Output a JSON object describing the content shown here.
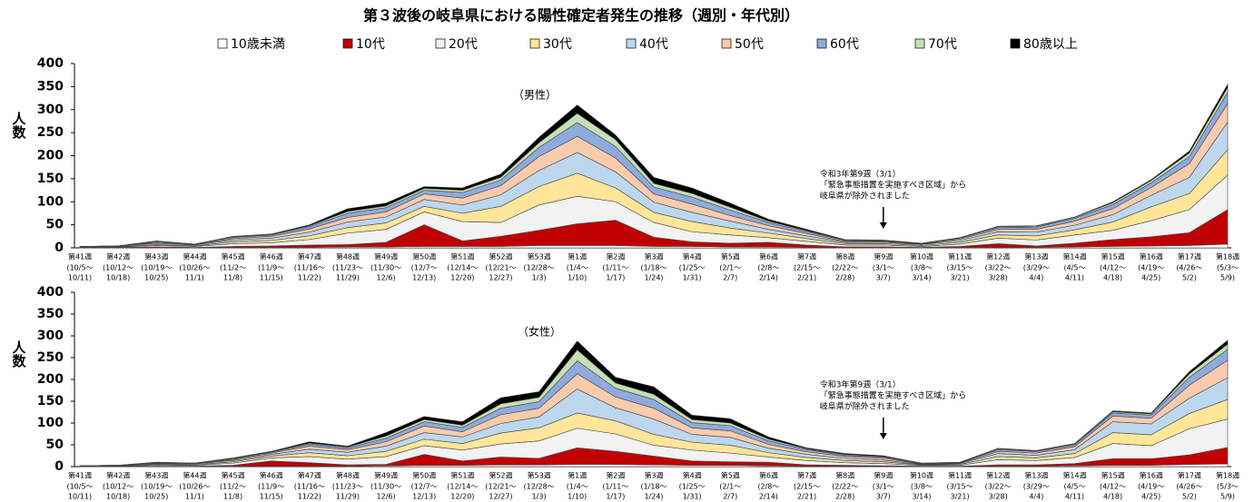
{
  "title": "第３波後の岐阜県における陽性確定者発生の推移（週別・年代別）",
  "chart_data": [
    {
      "type": "area",
      "stacked": true,
      "subtitle": "（男性）",
      "ylabel": "人数",
      "categories": [
        "第41週",
        "第42週",
        "第43週",
        "第44週",
        "第45週",
        "第46週",
        "第47週",
        "第48週",
        "第49週",
        "第50週",
        "第51週",
        "第52週",
        "第53週",
        "第1週",
        "第2週",
        "第3週",
        "第4週",
        "第5週",
        "第6週",
        "第7週",
        "第8週",
        "第9週",
        "第10週",
        "第11週",
        "第12週",
        "第13週",
        "第14週",
        "第15週",
        "第16週",
        "第17週",
        "第18週"
      ],
      "category_dates": [
        [
          "(10/5〜",
          "10/11)"
        ],
        [
          "(10/12〜",
          "10/18)"
        ],
        [
          "(10/19〜",
          "10/25)"
        ],
        [
          "(10/26〜",
          "11/1)"
        ],
        [
          "(11/2〜",
          "11/8)"
        ],
        [
          "(11/9〜",
          "11/15)"
        ],
        [
          "(11/16〜",
          "11/22)"
        ],
        [
          "(11/23〜",
          "11/29)"
        ],
        [
          "(11/30〜",
          "12/6)"
        ],
        [
          "(12/7〜",
          "12/13)"
        ],
        [
          "(12/14〜",
          "12/20)"
        ],
        [
          "(12/21〜",
          "12/27)"
        ],
        [
          "(12/28〜",
          "1/3)"
        ],
        [
          "(1/4〜",
          "1/10)"
        ],
        [
          "(1/11〜",
          "1/17)"
        ],
        [
          "(1/18〜",
          "1/24)"
        ],
        [
          "(1/25〜",
          "1/31)"
        ],
        [
          "(2/1〜",
          "2/7)"
        ],
        [
          "(2/8〜",
          "2/14)"
        ],
        [
          "(2/15〜",
          "2/21)"
        ],
        [
          "(2/22〜",
          "2/28)"
        ],
        [
          "(3/1〜",
          "3/7)"
        ],
        [
          "(3/8〜",
          "3/14)"
        ],
        [
          "(3/15〜",
          "3/21)"
        ],
        [
          "(3/22〜",
          "3/28)"
        ],
        [
          "(3/29〜",
          "4/4)"
        ],
        [
          "(4/5〜",
          "4/11)"
        ],
        [
          "(4/12〜",
          "4/18)"
        ],
        [
          "(4/19〜",
          "4/25)"
        ],
        [
          "(4/26〜",
          "5/2)"
        ],
        [
          "(5/3〜",
          "5/9)"
        ]
      ],
      "series": [
        {
          "name": "10歳未満",
          "color": "#ffffff",
          "values": [
            0,
            0,
            0,
            0,
            1,
            1,
            1,
            2,
            2,
            3,
            3,
            3,
            5,
            5,
            5,
            3,
            3,
            2,
            2,
            1,
            0,
            0,
            0,
            1,
            1,
            1,
            2,
            3,
            4,
            5,
            8
          ]
        },
        {
          "name": "10代",
          "color": "#c00000",
          "values": [
            1,
            1,
            2,
            1,
            2,
            3,
            5,
            5,
            10,
            47,
            12,
            22,
            33,
            47,
            55,
            20,
            10,
            8,
            10,
            5,
            2,
            2,
            1,
            2,
            8,
            3,
            8,
            15,
            20,
            28,
            75
          ]
        },
        {
          "name": "20代",
          "color": "#f2f2f2",
          "values": [
            1,
            1,
            3,
            2,
            6,
            7,
            12,
            25,
            28,
            28,
            42,
            30,
            55,
            60,
            40,
            32,
            22,
            18,
            10,
            8,
            4,
            4,
            2,
            5,
            12,
            13,
            18,
            20,
            35,
            50,
            75
          ]
        },
        {
          "name": "30代",
          "color": "#ffe699",
          "values": [
            1,
            1,
            2,
            1,
            4,
            5,
            8,
            12,
            14,
            12,
            18,
            35,
            40,
            50,
            30,
            22,
            22,
            15,
            10,
            6,
            3,
            3,
            2,
            4,
            7,
            9,
            11,
            18,
            30,
            35,
            55
          ]
        },
        {
          "name": "40代",
          "color": "#bdd7ee",
          "values": [
            0,
            1,
            3,
            2,
            4,
            5,
            8,
            12,
            13,
            15,
            18,
            25,
            35,
            45,
            35,
            22,
            20,
            15,
            8,
            6,
            3,
            3,
            2,
            4,
            7,
            8,
            10,
            16,
            25,
            35,
            60
          ]
        },
        {
          "name": "50代",
          "color": "#f8cbad",
          "values": [
            0,
            0,
            2,
            1,
            3,
            4,
            7,
            10,
            11,
            12,
            15,
            20,
            30,
            35,
            30,
            18,
            18,
            12,
            8,
            5,
            2,
            2,
            1,
            3,
            5,
            6,
            9,
            13,
            17,
            30,
            40
          ]
        },
        {
          "name": "60代",
          "color": "#8faadc",
          "values": [
            0,
            0,
            2,
            1,
            3,
            3,
            5,
            9,
            9,
            8,
            12,
            12,
            20,
            30,
            25,
            15,
            15,
            12,
            7,
            4,
            2,
            1,
            1,
            2,
            4,
            5,
            6,
            9,
            10,
            15,
            25
          ]
        },
        {
          "name": "70代",
          "color": "#c5e0b4",
          "values": [
            0,
            0,
            1,
            0,
            1,
            1,
            2,
            4,
            4,
            4,
            5,
            6,
            10,
            20,
            15,
            8,
            8,
            6,
            3,
            2,
            1,
            1,
            1,
            1,
            2,
            2,
            2,
            4,
            5,
            8,
            10
          ]
        },
        {
          "name": "80歳以上",
          "color": "#000000",
          "values": [
            0,
            0,
            0,
            0,
            1,
            1,
            2,
            6,
            6,
            4,
            5,
            7,
            12,
            18,
            10,
            13,
            12,
            9,
            4,
            3,
            1,
            1,
            0,
            0,
            1,
            1,
            1,
            2,
            2,
            4,
            7
          ]
        }
      ],
      "ylim": [
        0,
        400
      ],
      "yticks": [
        0,
        50,
        100,
        150,
        200,
        250,
        300,
        350,
        400
      ],
      "annotation": {
        "lines": [
          "令和3年第9週（3/1）",
          "「緊急事態措置を実施すべき区域」から",
          "岐阜県が除外されました"
        ],
        "at": "第9週"
      }
    },
    {
      "type": "area",
      "stacked": true,
      "subtitle": "（女性）",
      "ylabel": "人数",
      "categories": [
        "第41週",
        "第42週",
        "第43週",
        "第44週",
        "第45週",
        "第46週",
        "第47週",
        "第48週",
        "第49週",
        "第50週",
        "第51週",
        "第52週",
        "第53週",
        "第1週",
        "第2週",
        "第3週",
        "第4週",
        "第5週",
        "第6週",
        "第7週",
        "第8週",
        "第9週",
        "第10週",
        "第11週",
        "第12週",
        "第13週",
        "第14週",
        "第15週",
        "第16週",
        "第17週",
        "第18週"
      ],
      "category_dates": [
        [
          "(10/5〜",
          "10/11)"
        ],
        [
          "(10/12〜",
          "10/18)"
        ],
        [
          "(10/19〜",
          "10/25)"
        ],
        [
          "(10/26〜",
          "11/1)"
        ],
        [
          "(11/2〜",
          "11/8)"
        ],
        [
          "(11/9〜",
          "11/15)"
        ],
        [
          "(11/16〜",
          "11/22)"
        ],
        [
          "(11/23〜",
          "11/29)"
        ],
        [
          "(11/30〜",
          "12/6)"
        ],
        [
          "(12/7〜",
          "12/13)"
        ],
        [
          "(12/14〜",
          "12/20)"
        ],
        [
          "(12/21〜",
          "12/27)"
        ],
        [
          "(12/28〜",
          "1/3)"
        ],
        [
          "(1/4〜",
          "1/10)"
        ],
        [
          "(1/11〜",
          "1/17)"
        ],
        [
          "(1/18〜",
          "1/24)"
        ],
        [
          "(1/25〜",
          "1/31)"
        ],
        [
          "(2/1〜",
          "2/7)"
        ],
        [
          "(2/8〜",
          "2/14)"
        ],
        [
          "(2/15〜",
          "2/21)"
        ],
        [
          "(2/22〜",
          "2/28)"
        ],
        [
          "(3/1〜",
          "3/7)"
        ],
        [
          "(3/8〜",
          "3/14)"
        ],
        [
          "(3/15〜",
          "3/21)"
        ],
        [
          "(3/22〜",
          "3/28)"
        ],
        [
          "(3/29〜",
          "4/4)"
        ],
        [
          "(4/5〜",
          "4/11)"
        ],
        [
          "(4/12〜",
          "4/18)"
        ],
        [
          "(4/19〜",
          "4/25)"
        ],
        [
          "(4/26〜",
          "5/2)"
        ],
        [
          "(5/3〜",
          "5/9)"
        ]
      ],
      "series": [
        {
          "values": [
            0,
            0,
            0,
            0,
            1,
            1,
            1,
            1,
            2,
            3,
            3,
            4,
            4,
            5,
            5,
            4,
            3,
            3,
            2,
            1,
            1,
            0,
            0,
            0,
            1,
            1,
            2,
            3,
            3,
            5,
            6
          ]
        },
        {
          "values": [
            0,
            0,
            1,
            1,
            2,
            12,
            8,
            3,
            3,
            25,
            10,
            18,
            15,
            38,
            30,
            20,
            10,
            8,
            8,
            3,
            2,
            2,
            1,
            1,
            3,
            3,
            5,
            15,
            15,
            22,
            38
          ]
        },
        {
          "values": [
            1,
            1,
            2,
            2,
            5,
            7,
            14,
            13,
            18,
            20,
            25,
            30,
            40,
            45,
            40,
            25,
            25,
            20,
            12,
            10,
            6,
            5,
            2,
            2,
            12,
            10,
            14,
            35,
            30,
            60,
            65
          ]
        },
        {
          "values": [
            1,
            1,
            2,
            1,
            3,
            4,
            9,
            8,
            12,
            15,
            15,
            25,
            30,
            35,
            30,
            25,
            18,
            18,
            10,
            7,
            5,
            4,
            1,
            2,
            7,
            6,
            9,
            25,
            25,
            35,
            45
          ]
        },
        {
          "values": [
            0,
            1,
            2,
            2,
            3,
            4,
            8,
            8,
            12,
            15,
            15,
            22,
            25,
            55,
            30,
            35,
            18,
            18,
            10,
            7,
            5,
            4,
            1,
            2,
            7,
            6,
            9,
            25,
            25,
            35,
            50
          ]
        },
        {
          "values": [
            0,
            0,
            1,
            1,
            2,
            3,
            7,
            6,
            10,
            15,
            12,
            20,
            20,
            35,
            25,
            25,
            15,
            15,
            9,
            6,
            4,
            4,
            1,
            1,
            5,
            5,
            7,
            13,
            13,
            30,
            40
          ]
        },
        {
          "values": [
            0,
            0,
            1,
            1,
            2,
            2,
            5,
            4,
            8,
            10,
            10,
            15,
            15,
            30,
            20,
            20,
            12,
            12,
            8,
            5,
            3,
            3,
            1,
            1,
            4,
            4,
            4,
            7,
            7,
            18,
            25
          ]
        },
        {
          "values": [
            0,
            0,
            1,
            0,
            1,
            1,
            2,
            2,
            5,
            5,
            5,
            10,
            10,
            25,
            12,
            12,
            7,
            6,
            4,
            2,
            2,
            1,
            1,
            1,
            2,
            1,
            2,
            3,
            3,
            8,
            12
          ]
        },
        {
          "values": [
            0,
            0,
            0,
            0,
            1,
            1,
            3,
            2,
            8,
            7,
            8,
            14,
            13,
            20,
            13,
            17,
            10,
            10,
            5,
            2,
            2,
            2,
            0,
            0,
            1,
            1,
            1,
            2,
            2,
            5,
            9
          ]
        }
      ],
      "ylim": [
        0,
        400
      ],
      "yticks": [
        0,
        50,
        100,
        150,
        200,
        250,
        300,
        350,
        400
      ],
      "annotation": {
        "lines": [
          "令和3年第9週（3/1）",
          "「緊急事態措置を実施すべき区域」から",
          "岐阜県が除外されました"
        ],
        "at": "第9週"
      }
    }
  ]
}
